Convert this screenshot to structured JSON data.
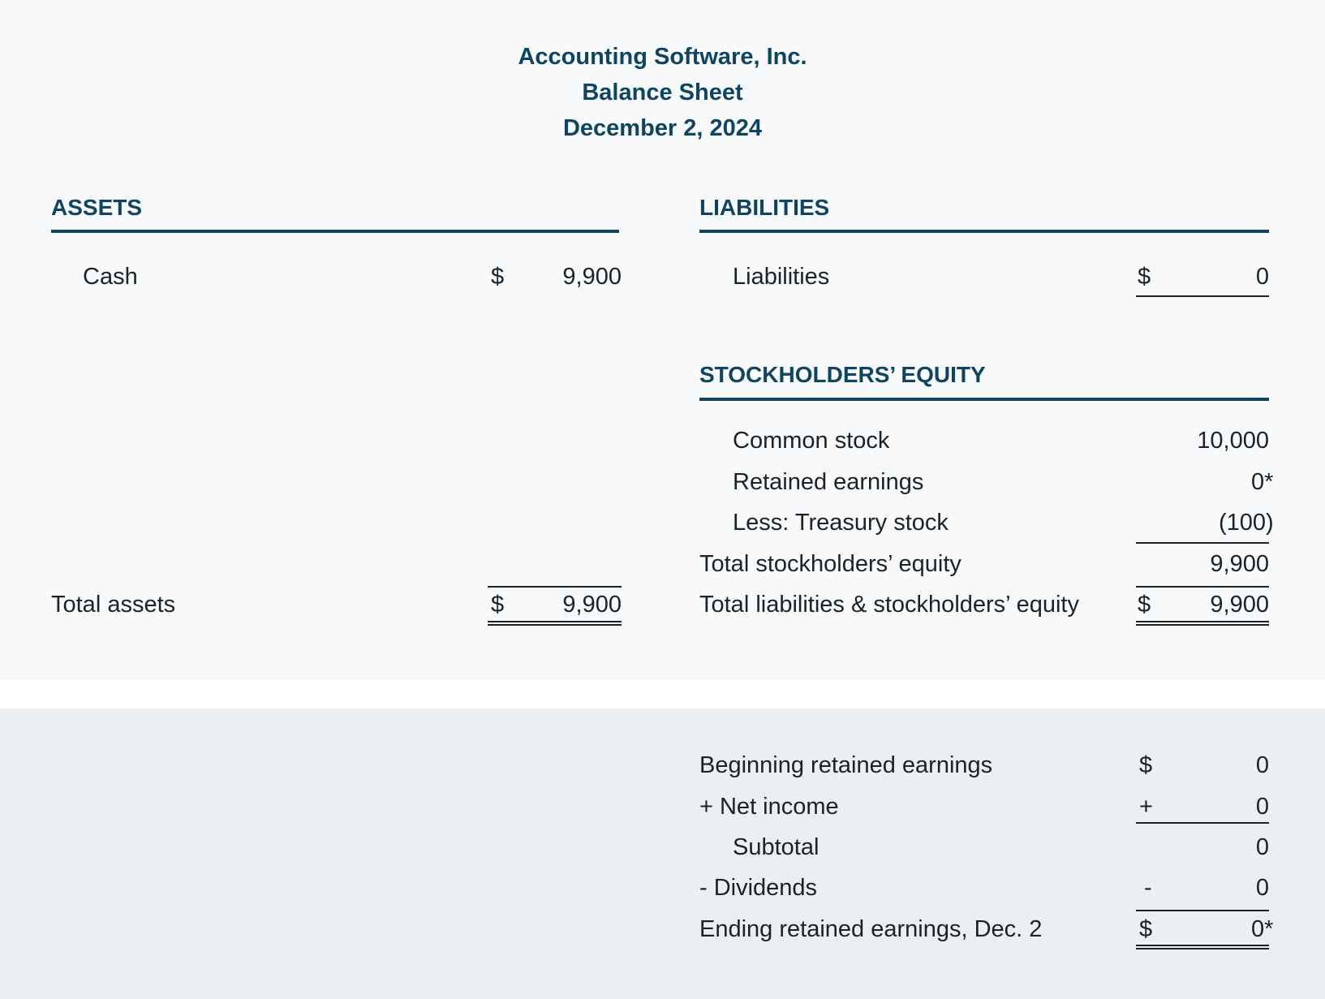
{
  "header": {
    "company": "Accounting Software, Inc.",
    "title": "Balance Sheet",
    "date": "December 2, 2024"
  },
  "assets": {
    "heading": "ASSETS",
    "cash_label": "Cash",
    "cash_currency": "$",
    "cash_value": "9,900",
    "total_label": "Total assets",
    "total_currency": "$",
    "total_value": "9,900"
  },
  "liabilities": {
    "heading": "LIABILITIES",
    "label": "Liabilities",
    "currency": "$",
    "value": "0"
  },
  "equity": {
    "heading": "STOCKHOLDERS’ EQUITY",
    "common_label": "Common stock",
    "common_value": "10,000",
    "retained_label": "Retained earnings",
    "retained_value": "0*",
    "treasury_label": "Less: Treasury stock",
    "treasury_value": "(100)",
    "total_label": "Total stockholders’ equity",
    "total_value": "9,900",
    "total_le_label": "Total liabilities & stockholders’ equity",
    "total_le_currency": "$",
    "total_le_value": "9,900"
  },
  "retained_schedule": {
    "beginning_label": "Beginning retained earnings",
    "beginning_sign": "$",
    "beginning_value": "0",
    "net_income_label": "+ Net income",
    "net_income_sign": "+",
    "net_income_value": "0",
    "subtotal_label": "Subtotal",
    "subtotal_value": "0",
    "dividends_label": "- Dividends",
    "dividends_sign": "-",
    "dividends_value": "0",
    "ending_label": "Ending retained earnings, Dec. 2",
    "ending_sign": "$",
    "ending_value": "0*"
  }
}
